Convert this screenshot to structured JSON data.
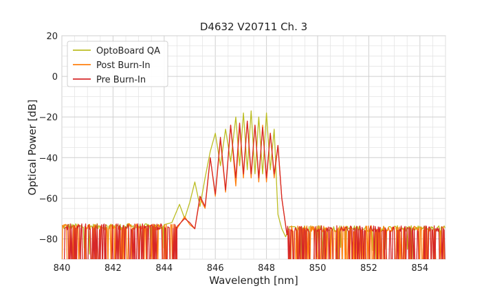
{
  "chart_data": {
    "type": "line",
    "title": "D4632 V20711 Ch. 3",
    "xlabel": "Wavelength [nm]",
    "ylabel": "Optical Power [dB]",
    "xlim": [
      840,
      855
    ],
    "ylim": [
      -90,
      20
    ],
    "xticks": [
      "840",
      "842",
      "844",
      "846",
      "848",
      "850",
      "852",
      "854"
    ],
    "yticks": [
      "20",
      "0",
      "−20",
      "−40",
      "−60",
      "−80"
    ],
    "grid": true,
    "legend_position": "top-left",
    "noise_floor": {
      "x_range": [
        840,
        855
      ],
      "approx_level": -74,
      "drops_to_axis_bottom": true
    },
    "series": [
      {
        "name": "OptoBoard QA",
        "color": "#bcbd22",
        "x": [
          844.0,
          844.3,
          844.6,
          844.8,
          845.0,
          845.2,
          845.4,
          845.6,
          845.8,
          846.0,
          846.2,
          846.4,
          846.6,
          846.8,
          846.95,
          847.1,
          847.25,
          847.4,
          847.55,
          847.7,
          847.85,
          848.0,
          848.15,
          848.3,
          848.45,
          848.6,
          848.75,
          848.9,
          849.1
        ],
        "y": [
          -73,
          -72,
          -63,
          -70,
          -62,
          -52,
          -64,
          -50,
          -37,
          -28,
          -44,
          -26,
          -42,
          -20,
          -44,
          -18,
          -46,
          -17,
          -48,
          -20,
          -48,
          -18,
          -46,
          -26,
          -68,
          -75,
          -79,
          -74,
          -74
        ]
      },
      {
        "name": "Post Burn-In",
        "color": "#ff7f0e",
        "x": [
          844.5,
          844.8,
          845.0,
          845.2,
          845.4,
          845.6,
          845.8,
          846.0,
          846.2,
          846.4,
          846.6,
          846.8,
          846.95,
          847.1,
          847.25,
          847.4,
          847.55,
          847.7,
          847.85,
          848.0,
          848.15,
          848.3,
          848.45,
          848.6,
          848.8
        ],
        "y": [
          -75,
          -69,
          -73,
          -75,
          -60,
          -65,
          -40,
          -59,
          -31,
          -57,
          -24,
          -54,
          -24,
          -50,
          -22,
          -50,
          -24,
          -52,
          -24,
          -52,
          -28,
          -50,
          -34,
          -60,
          -78
        ]
      },
      {
        "name": "Pre Burn-In",
        "color": "#d62728",
        "x": [
          844.5,
          844.8,
          845.0,
          845.2,
          845.4,
          845.6,
          845.8,
          846.0,
          846.2,
          846.4,
          846.6,
          846.8,
          846.95,
          847.1,
          847.25,
          847.4,
          847.55,
          847.7,
          847.85,
          848.0,
          848.15,
          848.3,
          848.45,
          848.6,
          848.8
        ],
        "y": [
          -74,
          -70,
          -72,
          -75,
          -59,
          -64,
          -40,
          -58,
          -30,
          -56,
          -24,
          -50,
          -23,
          -48,
          -22,
          -48,
          -24,
          -50,
          -25,
          -50,
          -28,
          -48,
          -34,
          -60,
          -78
        ]
      }
    ]
  }
}
